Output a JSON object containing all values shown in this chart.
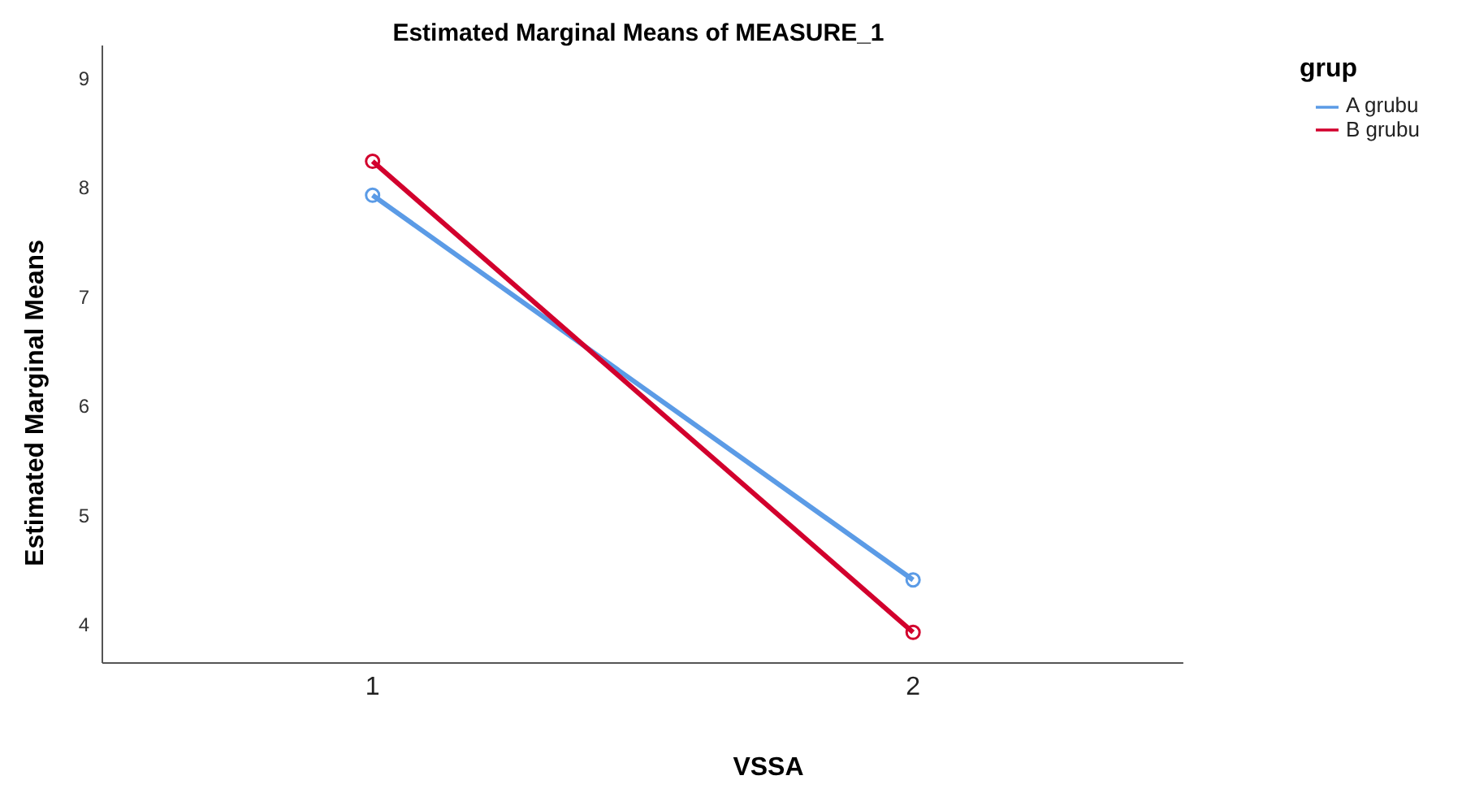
{
  "chart_data": {
    "type": "line",
    "title": "Estimated Marginal Means of MEASURE_1",
    "xlabel": "VSSA",
    "ylabel": "Estimated Marginal Means",
    "legend_title": "grup",
    "categories": [
      "1",
      "2"
    ],
    "series": [
      {
        "name": "A grubu",
        "color": "#5b9be6",
        "values": [
          7.93,
          4.41
        ]
      },
      {
        "name": "B grubu",
        "color": "#d2002d",
        "values": [
          8.24,
          3.93
        ]
      }
    ],
    "ylim": [
      3.65,
      9.3
    ],
    "yticks": [
      4,
      5,
      6,
      7,
      8,
      9
    ],
    "grid": false,
    "legend": "top right",
    "marker": "circle",
    "line_style": "solid"
  }
}
